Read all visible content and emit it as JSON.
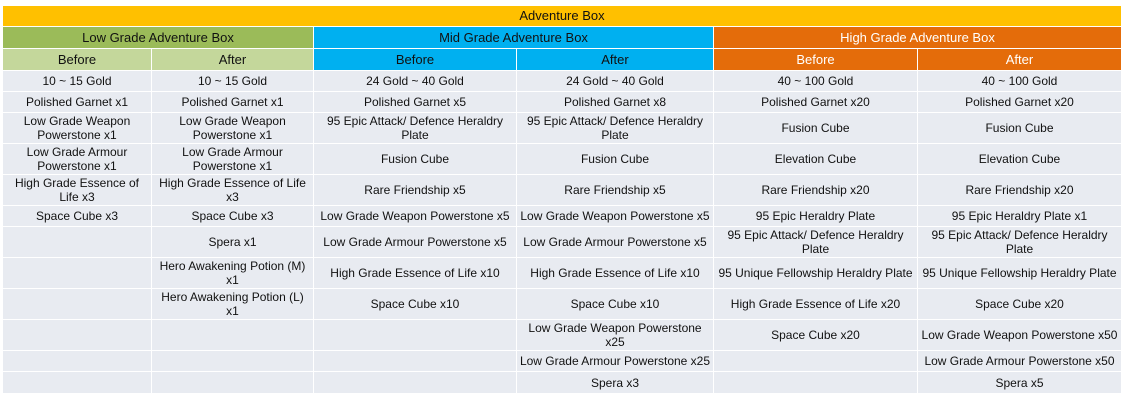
{
  "title": "Adventure Box",
  "groups": [
    {
      "name": "Low Grade Adventure Box",
      "before": "Before",
      "after": "After"
    },
    {
      "name": "Mid Grade Adventure Box",
      "before": "Before",
      "after": "After"
    },
    {
      "name": "High Grade Adventure Box",
      "before": "Before",
      "after": "After"
    }
  ],
  "rows": [
    [
      "10 ~ 15 Gold",
      "10 ~ 15 Gold",
      "24 Gold ~ 40 Gold",
      "24 Gold ~ 40 Gold",
      "40 ~ 100 Gold",
      "40 ~ 100 Gold"
    ],
    [
      "Polished Garnet x1",
      "Polished Garnet x1",
      "Polished Garnet x5",
      "Polished Garnet x8",
      "Polished Garnet x20",
      "Polished Garnet x20"
    ],
    [
      "Low Grade Weapon Powerstone x1",
      "Low Grade Weapon Powerstone x1",
      "95 Epic Attack/ Defence Heraldry Plate",
      "95 Epic Attack/ Defence Heraldry Plate",
      "Fusion Cube",
      "Fusion Cube"
    ],
    [
      "Low Grade Armour Powerstone x1",
      "Low Grade Armour Powerstone x1",
      "Fusion Cube",
      "Fusion Cube",
      "Elevation Cube",
      "Elevation Cube"
    ],
    [
      "High Grade Essence of Life x3",
      "High Grade Essence of Life x3",
      "Rare Friendship x5",
      "Rare Friendship x5",
      "Rare Friendship x20",
      "Rare Friendship x20"
    ],
    [
      "Space Cube x3",
      "Space Cube x3",
      "Low Grade Weapon Powerstone x5",
      "Low Grade Weapon Powerstone x5",
      "95 Epic Heraldry Plate",
      "95 Epic Heraldry Plate x1"
    ],
    [
      "",
      "Spera x1",
      "Low Grade Armour Powerstone x5",
      "Low Grade Armour Powerstone x5",
      "95 Epic Attack/ Defence Heraldry Plate",
      "95 Epic Attack/ Defence Heraldry Plate"
    ],
    [
      "",
      "Hero Awakening Potion (M) x1",
      "High Grade Essence of Life x10",
      "High Grade Essence of Life x10",
      "95 Unique Fellowship Heraldry Plate",
      "95 Unique Fellowship Heraldry Plate"
    ],
    [
      "",
      "Hero Awakening Potion (L) x1",
      "Space Cube x10",
      "Space Cube x10",
      "High Grade Essence of Life x20",
      "Space Cube x20"
    ],
    [
      "",
      "",
      "",
      "Low Grade Weapon Powerstone x25",
      "Space Cube x20",
      "Low Grade Weapon Powerstone x50"
    ],
    [
      "",
      "",
      "",
      "Low Grade Armour Powerstone x25",
      "",
      "Low Grade Armour Powerstone x50"
    ],
    [
      "",
      "",
      "",
      "Spera x3",
      "",
      "Spera x5"
    ]
  ]
}
